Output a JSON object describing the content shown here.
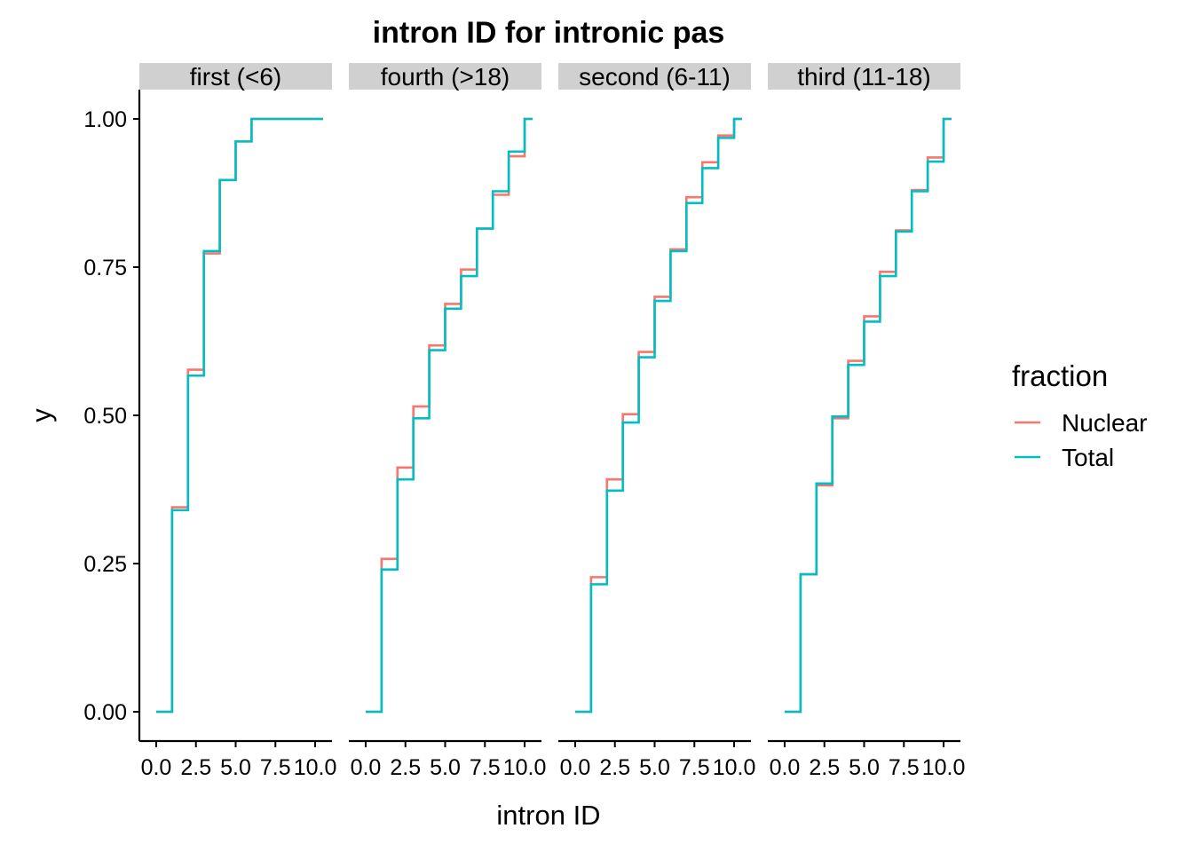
{
  "chart_data": {
    "type": "line",
    "title": "intron ID for intronic pas",
    "xlabel": "intron ID",
    "ylabel": "y",
    "xlim": [
      -0.5,
      10.5
    ],
    "ylim": [
      0,
      1
    ],
    "x_ticks": [
      0,
      2.5,
      5,
      7.5,
      10
    ],
    "x_tick_labels": [
      "0.0",
      "2.5",
      "5.0",
      "7.5",
      "10.0"
    ],
    "y_ticks": [
      0,
      0.25,
      0.5,
      0.75,
      1
    ],
    "y_tick_labels": [
      "0.00",
      "0.25",
      "0.50",
      "0.75",
      "1.00"
    ],
    "step": true,
    "grid": false,
    "legend": {
      "title": "fraction",
      "position": "right",
      "entries": [
        {
          "name": "Nuclear",
          "color": "#F8766D"
        },
        {
          "name": "Total",
          "color": "#00BFC4"
        }
      ]
    },
    "x": [
      0,
      1,
      2,
      3,
      4,
      5,
      6,
      7,
      8,
      9,
      10
    ],
    "facets": [
      {
        "label": "first (<6)",
        "series": [
          {
            "name": "Nuclear",
            "color": "#F8766D",
            "values": [
              0,
              0.345,
              0.577,
              0.773,
              0.897,
              0.962,
              1,
              1,
              1,
              1,
              1
            ]
          },
          {
            "name": "Total",
            "color": "#00BFC4",
            "values": [
              0,
              0.34,
              0.567,
              0.777,
              0.897,
              0.962,
              1,
              1,
              1,
              1,
              1
            ]
          }
        ]
      },
      {
        "label": "fourth (>18)",
        "series": [
          {
            "name": "Nuclear",
            "color": "#F8766D",
            "values": [
              0,
              0.258,
              0.412,
              0.515,
              0.618,
              0.688,
              0.746,
              0.815,
              0.872,
              0.937,
              1
            ]
          },
          {
            "name": "Total",
            "color": "#00BFC4",
            "values": [
              0,
              0.24,
              0.392,
              0.495,
              0.61,
              0.68,
              0.735,
              0.815,
              0.878,
              0.945,
              1
            ]
          }
        ]
      },
      {
        "label": "second (6-11)",
        "series": [
          {
            "name": "Nuclear",
            "color": "#F8766D",
            "values": [
              0,
              0.227,
              0.392,
              0.502,
              0.607,
              0.7,
              0.78,
              0.868,
              0.927,
              0.972,
              1
            ]
          },
          {
            "name": "Total",
            "color": "#00BFC4",
            "values": [
              0,
              0.215,
              0.373,
              0.488,
              0.598,
              0.693,
              0.777,
              0.858,
              0.917,
              0.968,
              1
            ]
          }
        ]
      },
      {
        "label": "third (11-18)",
        "series": [
          {
            "name": "Nuclear",
            "color": "#F8766D",
            "values": [
              0,
              0.232,
              0.382,
              0.495,
              0.592,
              0.667,
              0.742,
              0.812,
              0.88,
              0.935,
              1
            ]
          },
          {
            "name": "Total",
            "color": "#00BFC4",
            "values": [
              0,
              0.232,
              0.385,
              0.498,
              0.585,
              0.658,
              0.735,
              0.81,
              0.878,
              0.928,
              1
            ]
          }
        ]
      }
    ]
  }
}
